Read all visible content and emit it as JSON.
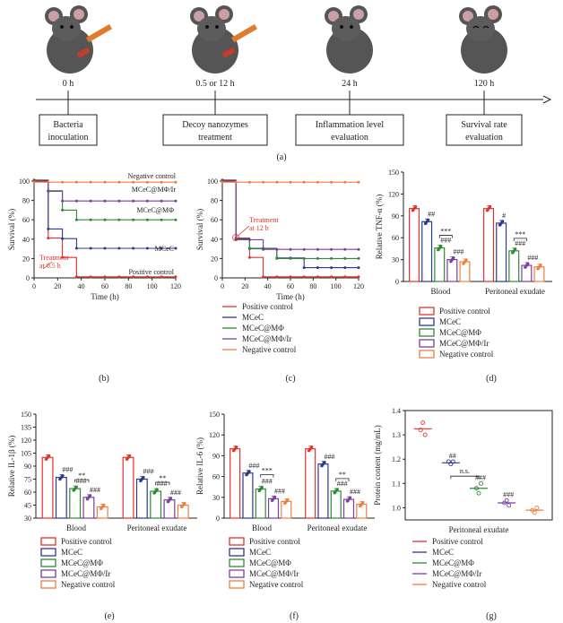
{
  "colors": {
    "positive": "#e4312b",
    "mcec": "#2c3a8c",
    "mcec_mphi": "#2e8b35",
    "mcec_mphi_ir": "#7b3f9e",
    "negative": "#f07f3c"
  },
  "legend": [
    "Positive control",
    "MCeC",
    "MCeC@MΦ",
    "MCeC@MΦ/Ir",
    "Negative control"
  ],
  "panel_a": {
    "label": "(a)",
    "times": [
      "0 h",
      "0.5 or 12 h",
      "24 h",
      "120 h"
    ],
    "steps": [
      [
        "Bacteria",
        "inoculation"
      ],
      [
        "Decoy nanozymes",
        "treatment"
      ],
      [
        "Inflammation level",
        "evaluation"
      ],
      [
        "Survival rate",
        "evaluation"
      ]
    ]
  },
  "chart_data": [
    {
      "id": "b",
      "type": "line",
      "label": "(b)",
      "xlabel": "Time (h)",
      "ylabel": "Survival (%)",
      "xlim": [
        0,
        120
      ],
      "ylim": [
        0,
        100
      ],
      "xticks": [
        "0",
        "20",
        "40",
        "60",
        "80",
        "100",
        "120"
      ],
      "yticks": [
        "0",
        "20",
        "40",
        "60",
        "80",
        "100"
      ],
      "x": [
        0,
        12,
        24,
        36,
        48,
        60,
        72,
        84,
        96,
        108,
        120
      ],
      "series": [
        {
          "name": "Positive control",
          "values": [
            100,
            40,
            20,
            0,
            0,
            0,
            0,
            0,
            0,
            0,
            0
          ]
        },
        {
          "name": "MCeC",
          "values": [
            100,
            50,
            40,
            30,
            30,
            30,
            30,
            30,
            30,
            30,
            30
          ]
        },
        {
          "name": "MCeC@MΦ",
          "values": [
            100,
            90,
            70,
            60,
            60,
            60,
            60,
            60,
            60,
            60,
            60
          ]
        },
        {
          "name": "MCeC@MΦ/Ir",
          "values": [
            100,
            90,
            80,
            80,
            80,
            80,
            80,
            80,
            80,
            80,
            80
          ]
        },
        {
          "name": "Negative control",
          "values": [
            100,
            100,
            100,
            100,
            100,
            100,
            100,
            100,
            100,
            100,
            100
          ]
        }
      ],
      "curve_labels": [
        "Negative control",
        "MCeC@MΦ/Ir",
        "MCeC@MΦ",
        "MCeC",
        "Positive control"
      ],
      "annotation": [
        "Treatment",
        "at 0.5 h"
      ]
    },
    {
      "id": "c",
      "type": "line",
      "label": "(c)",
      "xlabel": "Time (h)",
      "ylabel": "Survival (%)",
      "xlim": [
        0,
        120
      ],
      "ylim": [
        0,
        100
      ],
      "xticks": [
        "0",
        "20",
        "40",
        "60",
        "80",
        "100",
        "120"
      ],
      "yticks": [
        "0",
        "20",
        "40",
        "60",
        "80",
        "100"
      ],
      "x": [
        0,
        12,
        24,
        36,
        48,
        60,
        72,
        84,
        96,
        108,
        120
      ],
      "series": [
        {
          "name": "Positive control",
          "values": [
            100,
            40,
            20,
            0,
            0,
            0,
            0,
            0,
            0,
            0,
            0
          ]
        },
        {
          "name": "MCeC",
          "values": [
            100,
            40,
            30,
            30,
            20,
            20,
            10,
            10,
            10,
            10,
            10
          ]
        },
        {
          "name": "MCeC@MΦ",
          "values": [
            100,
            40,
            30,
            30,
            20,
            20,
            20,
            20,
            20,
            20,
            20
          ]
        },
        {
          "name": "MCeC@MΦ/Ir",
          "values": [
            100,
            40,
            40,
            30,
            30,
            30,
            30,
            30,
            30,
            30,
            30
          ]
        },
        {
          "name": "Negative control",
          "values": [
            100,
            100,
            100,
            100,
            100,
            100,
            100,
            100,
            100,
            100,
            100
          ]
        }
      ],
      "annotation": [
        "Treatment",
        "at 12 h"
      ]
    },
    {
      "id": "d",
      "type": "bar",
      "label": "(d)",
      "ylabel": "Relative TNF-α (%)",
      "ylim": [
        0,
        150
      ],
      "yticks": [
        "0",
        "30",
        "60",
        "90",
        "120",
        "150"
      ],
      "categories": [
        "Blood",
        "Peritoneal exudate"
      ],
      "series": [
        {
          "name": "Positive control",
          "values": [
            100,
            100
          ]
        },
        {
          "name": "MCeC",
          "values": [
            82,
            80
          ]
        },
        {
          "name": "MCeC@MΦ",
          "values": [
            46,
            42
          ]
        },
        {
          "name": "MCeC@MΦ/Ir",
          "values": [
            30,
            22
          ]
        },
        {
          "name": "Negative control",
          "values": [
            27,
            20
          ]
        }
      ],
      "marks": [
        [
          "",
          "##",
          "###",
          "###",
          ""
        ],
        [
          "",
          "#",
          "###",
          "###",
          ""
        ]
      ],
      "sig": "***"
    },
    {
      "id": "e",
      "type": "bar",
      "label": "(e)",
      "ylabel": "Relative IL-1β (%)",
      "ylim": [
        30,
        150
      ],
      "yticks": [
        "30",
        "45",
        "60",
        "75",
        "90",
        "105",
        "120",
        "135",
        "150"
      ],
      "categories": [
        "Blood",
        "Peritoneal exudate"
      ],
      "series": [
        {
          "name": "Positive control",
          "values": [
            100,
            100
          ]
        },
        {
          "name": "MCeC",
          "values": [
            77,
            75
          ]
        },
        {
          "name": "MCeC@MΦ",
          "values": [
            64,
            61
          ]
        },
        {
          "name": "MCeC@MΦ/Ir",
          "values": [
            54,
            51
          ]
        },
        {
          "name": "Negative control",
          "values": [
            43,
            45
          ]
        }
      ],
      "marks": [
        [
          "",
          "###",
          "###",
          "###",
          ""
        ],
        [
          "",
          "###",
          "###",
          "###",
          ""
        ]
      ],
      "sig": "**"
    },
    {
      "id": "f",
      "type": "bar",
      "label": "(f)",
      "ylabel": "Relative IL-6 (%)",
      "ylim": [
        0,
        150
      ],
      "yticks": [
        "0",
        "30",
        "60",
        "90",
        "120",
        "150"
      ],
      "categories": [
        "Blood",
        "Peritoneal exudate"
      ],
      "series": [
        {
          "name": "Positive control",
          "values": [
            100,
            100
          ]
        },
        {
          "name": "MCeC",
          "values": [
            65,
            78
          ]
        },
        {
          "name": "MCeC@MΦ",
          "values": [
            42,
            39
          ]
        },
        {
          "name": "MCeC@MΦ/Ir",
          "values": [
            28,
            27
          ]
        },
        {
          "name": "Negative control",
          "values": [
            24,
            20
          ]
        }
      ],
      "marks": [
        [
          "",
          "###",
          "###",
          "###",
          ""
        ],
        [
          "",
          "###",
          "###",
          "###",
          ""
        ]
      ],
      "sig_blood": "***",
      "sig_exudate": "**"
    },
    {
      "id": "g",
      "type": "scatter",
      "label": "(g)",
      "ylabel": "Protein content (mg/mL)",
      "xlabel": "Peritoneal exudate",
      "ylim": [
        0.95,
        1.4
      ],
      "yticks": [
        "1.0",
        "1.1",
        "1.2",
        "1.3",
        "1.4"
      ],
      "series": [
        {
          "name": "Positive control",
          "values": [
            1.32,
            1.35,
            1.3
          ]
        },
        {
          "name": "MCeC",
          "values": [
            1.19,
            1.18,
            1.19
          ]
        },
        {
          "name": "MCeC@MΦ",
          "values": [
            1.08,
            1.06,
            1.1
          ]
        },
        {
          "name": "MCeC@MΦ/Ir",
          "values": [
            1.02,
            1.03,
            1.01
          ]
        },
        {
          "name": "Negative control",
          "values": [
            0.99,
            0.98,
            1.0
          ]
        }
      ],
      "means": [
        1.325,
        1.185,
        1.08,
        1.02,
        0.99
      ],
      "marks": [
        "",
        "##",
        "###",
        "###",
        ""
      ],
      "sig": "n.s."
    }
  ]
}
